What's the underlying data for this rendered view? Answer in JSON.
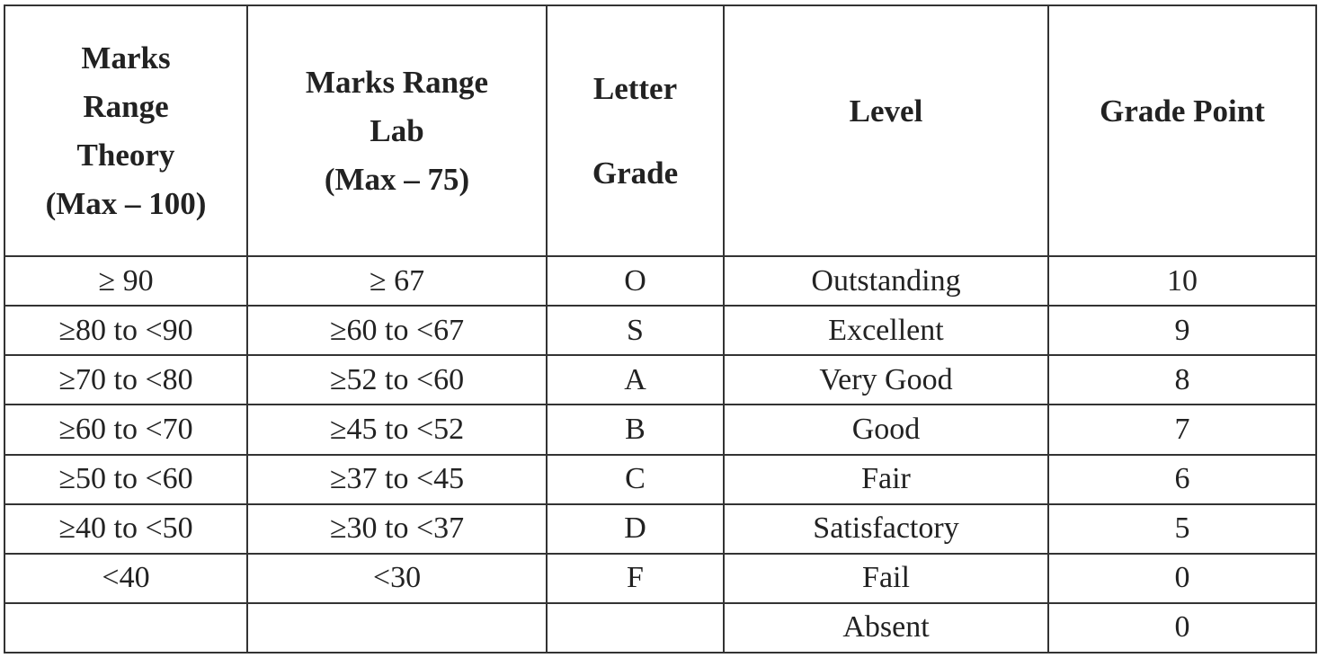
{
  "table": {
    "header": [
      [
        "Marks",
        "Range",
        "Theory",
        "(Max – 100)"
      ],
      [
        "Marks Range",
        "Lab",
        "(Max – 75)"
      ],
      [
        "Letter",
        "Grade"
      ],
      [
        "Level"
      ],
      [
        "Grade Point"
      ]
    ],
    "rows": [
      [
        "≥ 90",
        "≥ 67",
        "O",
        "Outstanding",
        10
      ],
      [
        "≥80 to <90",
        "≥60 to <67",
        "S",
        "Excellent",
        9
      ],
      [
        "≥70 to <80",
        "≥52 to <60",
        "A",
        "Very Good",
        8
      ],
      [
        "≥60 to <70",
        "≥45 to <52",
        "B",
        "Good",
        7
      ],
      [
        "≥50 to <60",
        "≥37 to <45",
        "C",
        "Fair",
        6
      ],
      [
        "≥40 to <50",
        "≥30 to <37",
        "D",
        "Satisfactory",
        5
      ],
      [
        "<40",
        "<30",
        "F",
        "Fail",
        0
      ],
      [
        null,
        null,
        null,
        "Absent",
        0
      ]
    ]
  }
}
